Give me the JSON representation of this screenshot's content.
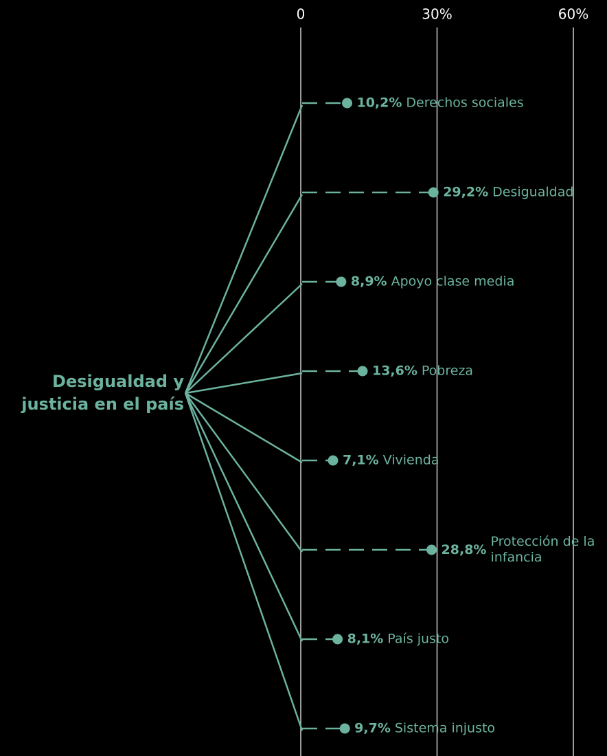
{
  "chart_data": {
    "type": "branch-dot",
    "title": "Desigualdad y justicia en el país",
    "categories": [
      "Derechos sociales",
      "Desigualdad",
      "Apoyo clase media",
      "Pobreza",
      "Vivienda",
      "Protección de la infancia",
      "País justo",
      "Sistema injusto"
    ],
    "values": [
      10.2,
      29.2,
      8.9,
      13.6,
      7.1,
      28.8,
      8.1,
      9.7
    ],
    "value_labels": [
      "10,2%",
      "29,2%",
      "8,9%",
      "13,6%",
      "7,1%",
      "28,8%",
      "8,1%",
      "9,7%"
    ],
    "color": "#6cb39f",
    "xlim": [
      0,
      60
    ],
    "xticks": [
      0,
      {
        "value": 30,
        "label": "30%"
      },
      {
        "value": 60,
        "label": "60%"
      }
    ],
    "grid": true
  }
}
